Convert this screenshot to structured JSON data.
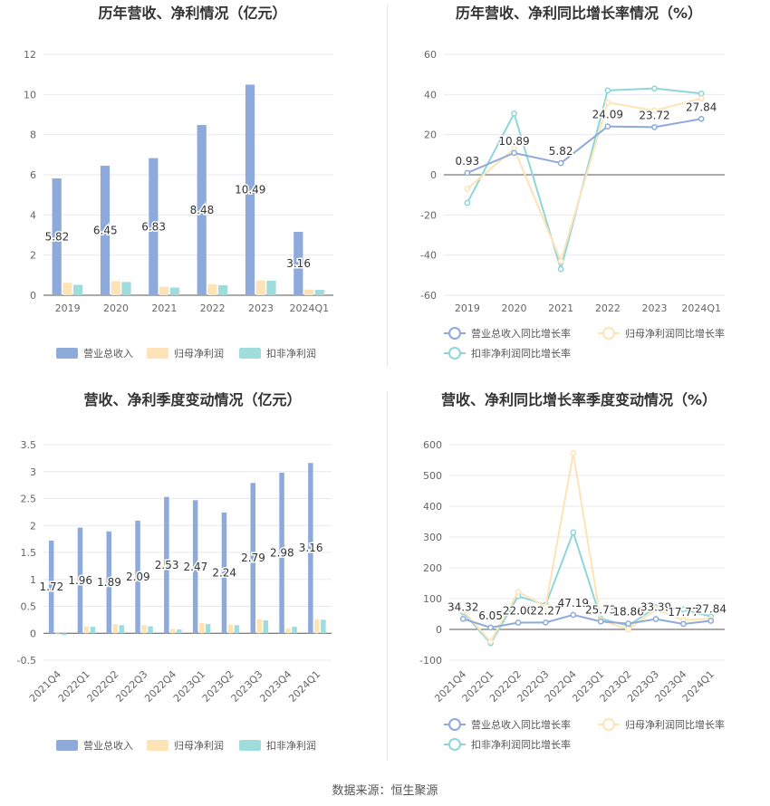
{
  "footer": {
    "source": "数据来源：恒生聚源"
  },
  "chart_data": [
    {
      "id": "annual-revenue",
      "type": "bar",
      "title": "历年营收、净利情况（亿元）",
      "categories": [
        "2019",
        "2020",
        "2021",
        "2022",
        "2023",
        "2024Q1"
      ],
      "ylim": [
        0,
        12
      ],
      "yticks": [
        0,
        2,
        4,
        6,
        8,
        10,
        12
      ],
      "grid": true,
      "legend_position": "bottom",
      "series": [
        {
          "name": "营业总收入",
          "color": "#8eaadb",
          "values": [
            5.82,
            6.45,
            6.83,
            8.48,
            10.49,
            3.16
          ],
          "labels": [
            "5.82",
            "6.45",
            "6.83",
            "8.48",
            "10.49",
            "3.16"
          ]
        },
        {
          "name": "归母净利润",
          "color": "#fde3b6",
          "values": [
            0.62,
            0.7,
            0.42,
            0.55,
            0.74,
            0.28
          ]
        },
        {
          "name": "扣非净利润",
          "color": "#9fdcdc",
          "values": [
            0.52,
            0.66,
            0.38,
            0.5,
            0.72,
            0.27
          ]
        }
      ]
    },
    {
      "id": "annual-growth",
      "type": "line",
      "title": "历年营收、净利同比增长率情况（%）",
      "categories": [
        "2019",
        "2020",
        "2021",
        "2022",
        "2023",
        "2024Q1"
      ],
      "ylim": [
        -60,
        60
      ],
      "yticks": [
        -60,
        -40,
        -20,
        0,
        20,
        40,
        60
      ],
      "grid": true,
      "legend_position": "bottom",
      "series": [
        {
          "name": "营业总收入同比增长率",
          "color": "#8eaadb",
          "values": [
            0.93,
            10.89,
            5.82,
            24.09,
            23.72,
            27.84
          ],
          "labels": [
            "0.93",
            "10.89",
            "5.82",
            "24.09",
            "23.72",
            "27.84"
          ]
        },
        {
          "name": "归母净利润同比增长率",
          "color": "#fde3b6",
          "values": [
            -7,
            13,
            -43,
            36,
            32,
            38
          ]
        },
        {
          "name": "扣非净利润同比增长率",
          "color": "#8fd6d8",
          "values": [
            -14,
            30.5,
            -47,
            42,
            43,
            40.5
          ]
        }
      ]
    },
    {
      "id": "quarterly-revenue",
      "type": "bar",
      "title": "营收、净利季度变动情况（亿元）",
      "categories": [
        "2021Q4",
        "2022Q1",
        "2022Q2",
        "2022Q3",
        "2022Q4",
        "2023Q1",
        "2023Q2",
        "2023Q3",
        "2023Q4",
        "2024Q1"
      ],
      "ylim": [
        -0.5,
        3.5
      ],
      "yticks": [
        -0.5,
        0,
        0.5,
        1,
        1.5,
        2,
        2.5,
        3,
        3.5
      ],
      "grid": true,
      "legend_position": "bottom",
      "series": [
        {
          "name": "营业总收入",
          "color": "#8eaadb",
          "values": [
            1.72,
            1.96,
            1.89,
            2.09,
            2.53,
            2.47,
            2.24,
            2.79,
            2.98,
            3.16
          ],
          "labels": [
            "1.72",
            "1.96",
            "1.89",
            "2.09",
            "2.53",
            "2.47",
            "2.24",
            "2.79",
            "2.98",
            "3.16"
          ]
        },
        {
          "name": "归母净利润",
          "color": "#fde3b6",
          "values": [
            -0.02,
            0.13,
            0.17,
            0.15,
            0.08,
            0.19,
            0.16,
            0.26,
            0.09,
            0.26
          ]
        },
        {
          "name": "扣非净利润",
          "color": "#9fdcdc",
          "values": [
            -0.03,
            0.12,
            0.15,
            0.13,
            0.07,
            0.17,
            0.15,
            0.24,
            0.12,
            0.25
          ]
        }
      ]
    },
    {
      "id": "quarterly-growth",
      "type": "line",
      "title": "营收、净利同比增长率季度变动情况（%）",
      "categories": [
        "2021Q4",
        "2022Q1",
        "2022Q2",
        "2022Q3",
        "2022Q4",
        "2023Q1",
        "2023Q2",
        "2023Q3",
        "2023Q4",
        "2024Q1"
      ],
      "ylim": [
        -100,
        600
      ],
      "yticks": [
        -100,
        0,
        100,
        200,
        300,
        400,
        500,
        600
      ],
      "grid": true,
      "legend_position": "bottom",
      "series": [
        {
          "name": "营业总收入同比增长率",
          "color": "#8eaadb",
          "values": [
            34.32,
            6.05,
            22.0,
            22.27,
            47.19,
            25.73,
            18.86,
            33.39,
            17.77,
            27.84
          ],
          "labels": [
            "34.32",
            "6.05",
            "22.00",
            "22.27",
            "47.19",
            "25.73",
            "18.86",
            "33.39",
            "17.77",
            "27.84"
          ]
        },
        {
          "name": "归母净利润同比增长率",
          "color": "#fde3b6",
          "values": [
            60,
            -40,
            122,
            75,
            572,
            30,
            0,
            65,
            30,
            35
          ]
        },
        {
          "name": "扣非净利润同比增长率",
          "color": "#8fd6d8",
          "values": [
            55,
            -45,
            108,
            80,
            315,
            35,
            12,
            72,
            65,
            42
          ]
        }
      ]
    }
  ]
}
